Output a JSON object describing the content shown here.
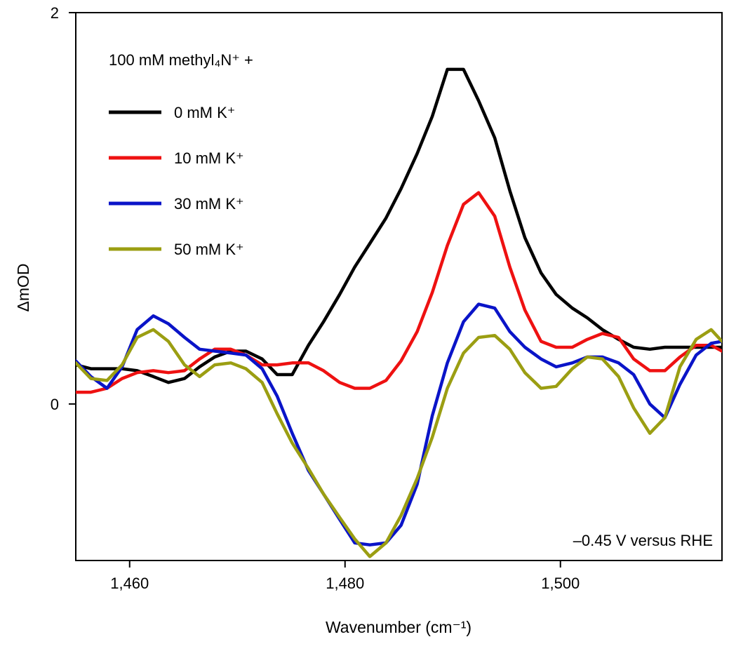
{
  "chart_data": {
    "type": "line",
    "title": "",
    "xlabel": "Wavenumber (cm⁻¹)",
    "ylabel": "ΔmOD",
    "xlim": [
      1455,
      1515
    ],
    "ylim": [
      -0.8,
      2
    ],
    "xticks": [
      1460,
      1480,
      1500
    ],
    "xtick_labels": [
      "1,460",
      "1,480",
      "1,500"
    ],
    "yticks": [
      0,
      2
    ],
    "ytick_labels": [
      "0",
      "2"
    ],
    "legend_header": "100 mM methyl₄N⁺ +",
    "annotation": "–0.45 V versus RHE",
    "x": [
      1455.0,
      1456.4,
      1457.9,
      1459.3,
      1460.7,
      1462.2,
      1463.6,
      1465.1,
      1466.5,
      1467.9,
      1469.4,
      1470.8,
      1472.3,
      1473.7,
      1475.1,
      1476.6,
      1478.0,
      1479.5,
      1480.9,
      1482.3,
      1483.8,
      1485.2,
      1486.7,
      1488.1,
      1489.5,
      1491.0,
      1492.4,
      1493.9,
      1495.3,
      1496.7,
      1498.2,
      1499.6,
      1501.1,
      1502.5,
      1503.9,
      1505.4,
      1506.8,
      1508.3,
      1509.7,
      1511.1,
      1512.6,
      1514.0,
      1515.0
    ],
    "series": [
      {
        "name": "0 mM K⁺",
        "color": "#000000",
        "values": [
          0.2,
          0.18,
          0.18,
          0.18,
          0.17,
          0.14,
          0.11,
          0.13,
          0.19,
          0.24,
          0.27,
          0.27,
          0.23,
          0.15,
          0.15,
          0.3,
          0.42,
          0.56,
          0.7,
          0.82,
          0.95,
          1.1,
          1.28,
          1.47,
          1.71,
          1.71,
          1.55,
          1.36,
          1.09,
          0.85,
          0.67,
          0.56,
          0.49,
          0.44,
          0.38,
          0.33,
          0.29,
          0.28,
          0.29,
          0.29,
          0.29,
          0.29,
          0.29
        ]
      },
      {
        "name": "10 mM K⁺",
        "color": "#ee1111",
        "values": [
          0.06,
          0.06,
          0.08,
          0.13,
          0.16,
          0.17,
          0.16,
          0.17,
          0.23,
          0.28,
          0.28,
          0.25,
          0.2,
          0.2,
          0.21,
          0.21,
          0.17,
          0.11,
          0.08,
          0.08,
          0.12,
          0.22,
          0.37,
          0.57,
          0.81,
          1.02,
          1.08,
          0.96,
          0.7,
          0.48,
          0.32,
          0.29,
          0.29,
          0.33,
          0.36,
          0.34,
          0.23,
          0.17,
          0.17,
          0.24,
          0.3,
          0.3,
          0.27
        ]
      },
      {
        "name": "30 mM K⁺",
        "color": "#0a14c8",
        "values": [
          0.22,
          0.14,
          0.08,
          0.19,
          0.38,
          0.45,
          0.41,
          0.34,
          0.28,
          0.27,
          0.26,
          0.25,
          0.18,
          0.04,
          -0.15,
          -0.34,
          -0.46,
          -0.59,
          -0.71,
          -0.72,
          -0.71,
          -0.62,
          -0.41,
          -0.06,
          0.21,
          0.42,
          0.51,
          0.49,
          0.37,
          0.29,
          0.23,
          0.19,
          0.21,
          0.24,
          0.24,
          0.21,
          0.15,
          0.0,
          -0.07,
          0.1,
          0.25,
          0.31,
          0.32
        ]
      },
      {
        "name": "50 mM K⁺",
        "color": "#9b9e12",
        "values": [
          0.21,
          0.13,
          0.12,
          0.2,
          0.34,
          0.38,
          0.32,
          0.2,
          0.14,
          0.2,
          0.21,
          0.18,
          0.11,
          -0.05,
          -0.2,
          -0.33,
          -0.46,
          -0.58,
          -0.69,
          -0.78,
          -0.71,
          -0.57,
          -0.38,
          -0.17,
          0.08,
          0.26,
          0.34,
          0.35,
          0.28,
          0.16,
          0.08,
          0.09,
          0.18,
          0.24,
          0.23,
          0.14,
          -0.02,
          -0.15,
          -0.07,
          0.19,
          0.33,
          0.38,
          0.32
        ]
      }
    ]
  }
}
